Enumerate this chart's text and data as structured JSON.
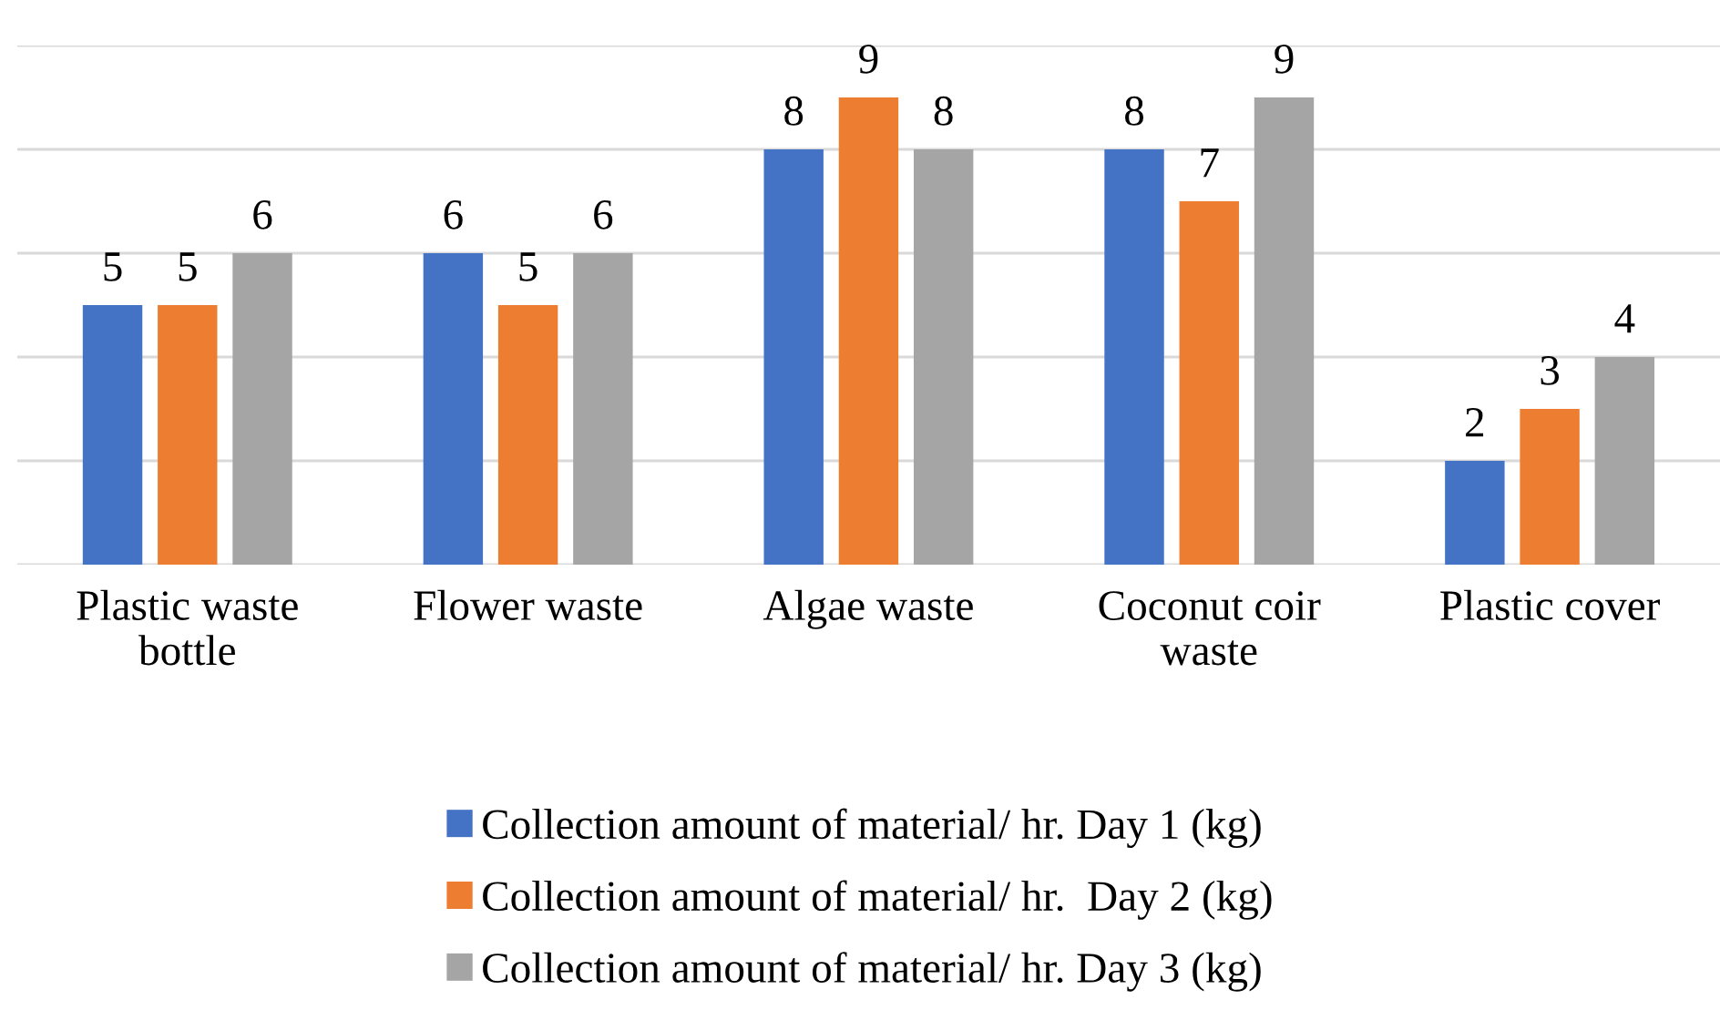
{
  "chart_data": {
    "type": "bar",
    "categories": [
      "Plastic waste\nbottle",
      "Flower waste",
      "Algae waste",
      "Coconut coir\nwaste",
      "Plastic cover"
    ],
    "series": [
      {
        "name": "Collection amount of material/ hr. Day 1 (kg)",
        "color": "#4472c4",
        "values": [
          5,
          6,
          8,
          8,
          2
        ]
      },
      {
        "name": "Collection amount of material/ hr.  Day 2 (kg)",
        "color": "#ed7d31",
        "values": [
          5,
          5,
          9,
          7,
          3
        ]
      },
      {
        "name": "Collection amount of material/ hr. Day 3 (kg)",
        "color": "#a5a5a5",
        "values": [
          6,
          6,
          8,
          9,
          4
        ]
      }
    ],
    "ylim": [
      0,
      10
    ],
    "yticks": [
      {
        "value": 0,
        "label": null
      },
      {
        "value": 2,
        "label": null
      },
      {
        "value": 4,
        "label": null
      },
      {
        "value": 6,
        "label": null
      },
      {
        "value": 8,
        "label": null
      },
      {
        "value": 10,
        "label": null
      }
    ],
    "tick_labels": "x",
    "grid": "y",
    "data_labels": true,
    "legend": "bottom"
  }
}
